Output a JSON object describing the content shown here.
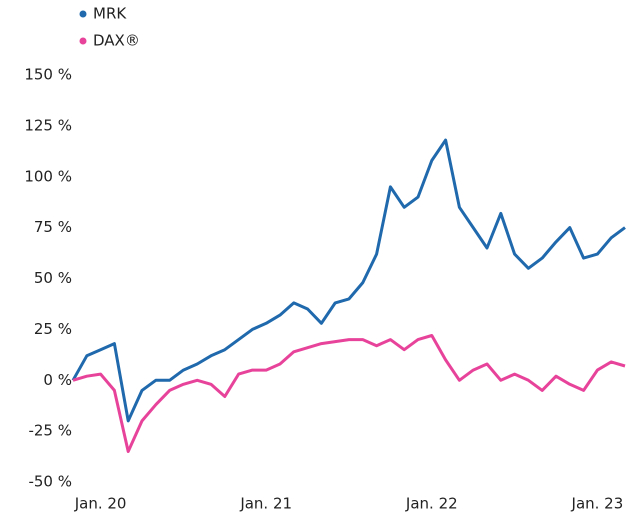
{
  "chart_data": {
    "type": "line",
    "x": [
      "2019-11",
      "2019-12",
      "2020-01",
      "2020-02",
      "2020-03",
      "2020-04",
      "2020-05",
      "2020-06",
      "2020-07",
      "2020-08",
      "2020-09",
      "2020-10",
      "2020-11",
      "2020-12",
      "2021-01",
      "2021-02",
      "2021-03",
      "2021-04",
      "2021-05",
      "2021-06",
      "2021-07",
      "2021-08",
      "2021-09",
      "2021-10",
      "2021-11",
      "2021-12",
      "2022-01",
      "2022-02",
      "2022-03",
      "2022-04",
      "2022-05",
      "2022-06",
      "2022-07",
      "2022-08",
      "2022-09",
      "2022-10",
      "2022-11",
      "2022-12",
      "2023-01",
      "2023-02",
      "2023-03"
    ],
    "series": [
      {
        "name": "MRK",
        "color": "#1f69ac",
        "values": [
          0,
          12,
          15,
          18,
          -20,
          -5,
          0,
          0,
          5,
          8,
          12,
          15,
          20,
          25,
          28,
          32,
          38,
          35,
          28,
          38,
          40,
          48,
          62,
          95,
          85,
          90,
          108,
          118,
          85,
          75,
          65,
          82,
          62,
          55,
          60,
          68,
          75,
          60,
          62,
          70,
          75
        ]
      },
      {
        "name": "DAX®",
        "color": "#e8439b",
        "values": [
          0,
          2,
          3,
          -5,
          -35,
          -20,
          -12,
          -5,
          -2,
          0,
          -2,
          -8,
          3,
          5,
          5,
          8,
          14,
          16,
          18,
          19,
          20,
          20,
          17,
          20,
          15,
          20,
          22,
          10,
          0,
          5,
          8,
          0,
          3,
          0,
          -5,
          2,
          -2,
          -5,
          5,
          9,
          7
        ]
      }
    ],
    "xlim": [
      "2019-11",
      "2023-03"
    ],
    "xticks": [
      {
        "value": "2020-01",
        "label": "Jan. 20"
      },
      {
        "value": "2021-01",
        "label": "Jan. 21"
      },
      {
        "value": "2022-01",
        "label": "Jan. 22"
      },
      {
        "value": "2023-01",
        "label": "Jan. 23"
      }
    ],
    "ylim": [
      -50,
      150
    ],
    "yticks": [
      {
        "value": -50,
        "label": "-50 %"
      },
      {
        "value": -25,
        "label": "-25 %"
      },
      {
        "value": 0,
        "label": "0 %"
      },
      {
        "value": 25,
        "label": "25 %"
      },
      {
        "value": 50,
        "label": "50 %"
      },
      {
        "value": 75,
        "label": "75 %"
      },
      {
        "value": 100,
        "label": "100 %"
      },
      {
        "value": 125,
        "label": "125 %"
      },
      {
        "value": 150,
        "label": "150 %"
      }
    ],
    "grid": false
  }
}
